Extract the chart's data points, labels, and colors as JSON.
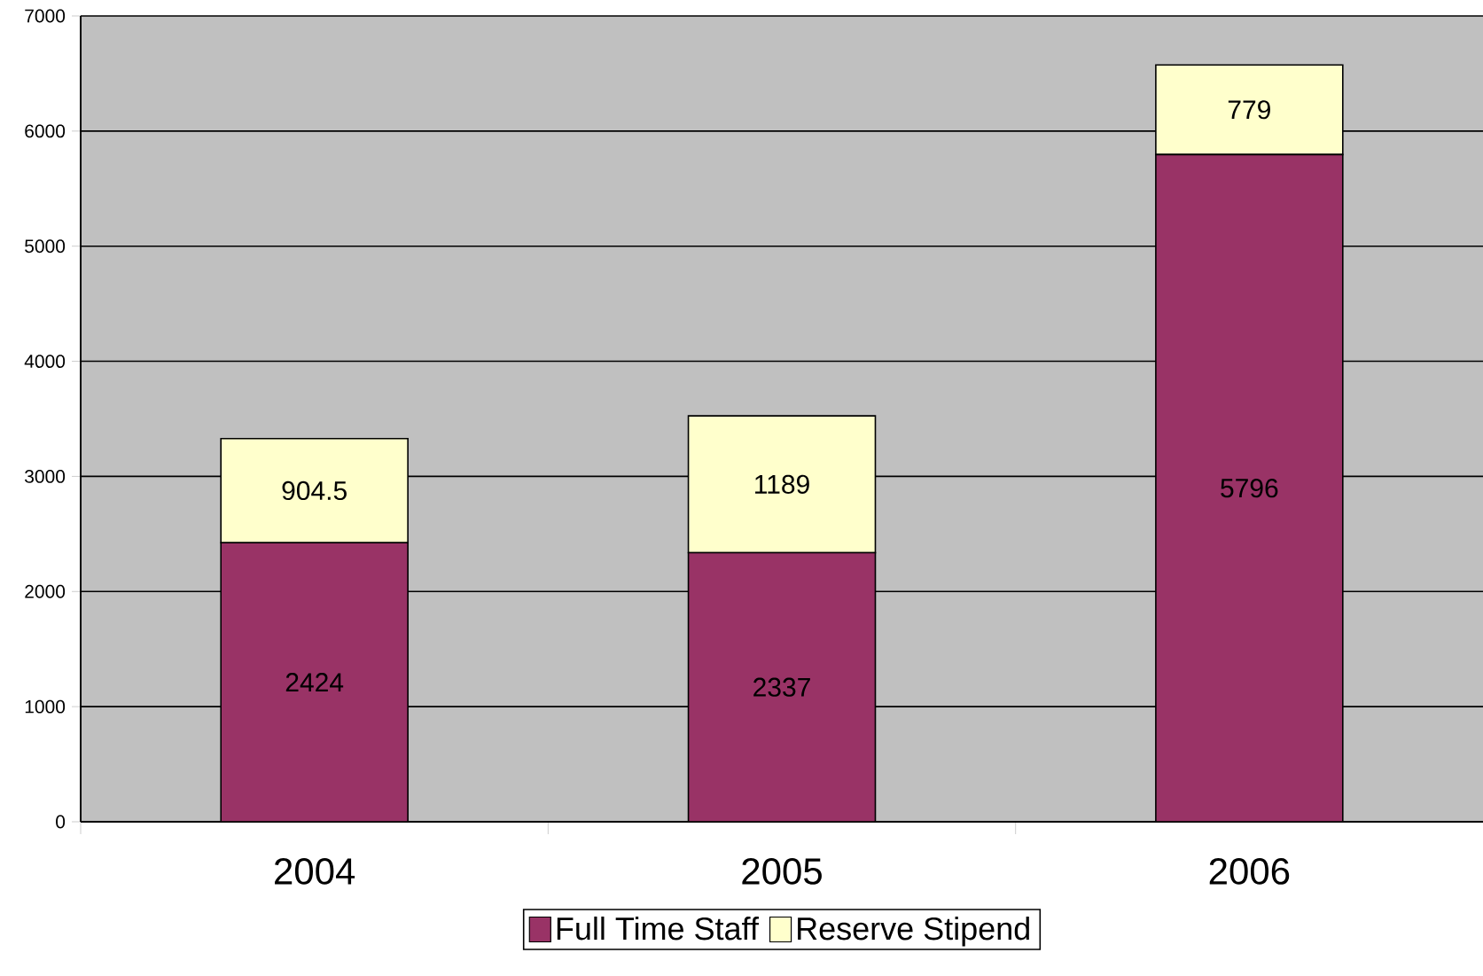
{
  "chart_data": {
    "type": "bar",
    "stacked": true,
    "categories": [
      "2004",
      "2005",
      "2006"
    ],
    "series": [
      {
        "name": "Full Time Staff",
        "color": "#993366",
        "values": [
          2424,
          2337,
          5796
        ]
      },
      {
        "name": "Reserve Stipend",
        "color": "#ffffcc",
        "values": [
          904.5,
          1189,
          779
        ]
      }
    ],
    "ylim": [
      0,
      7000
    ],
    "yticks": [
      0,
      1000,
      2000,
      3000,
      4000,
      5000,
      6000,
      7000
    ],
    "grid": "y",
    "legend": "bottom",
    "data_labels": true
  }
}
